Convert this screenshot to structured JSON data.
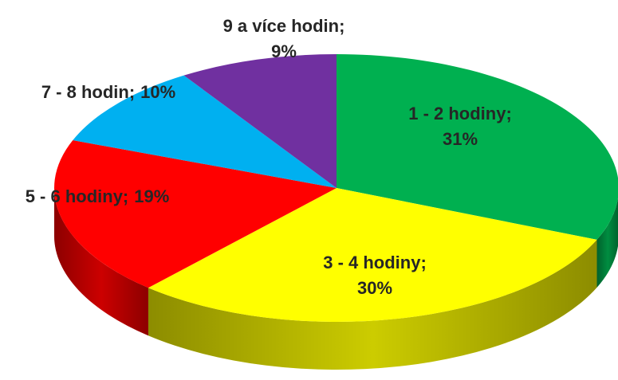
{
  "chart_data": {
    "type": "pie",
    "categories": [
      "1 - 2 hodiny;",
      "3 - 4 hodiny;",
      "5 - 6 hodiny;",
      "7 - 8 hodin;",
      "9 a více hodin;"
    ],
    "values": [
      31,
      30,
      19,
      10,
      9
    ],
    "value_labels": [
      "31%",
      "30%",
      "19%",
      "10%",
      "9%"
    ],
    "colors": [
      "#00b050",
      "#ffff00",
      "#ff0000",
      "#00b0f0",
      "#7030a0"
    ]
  }
}
